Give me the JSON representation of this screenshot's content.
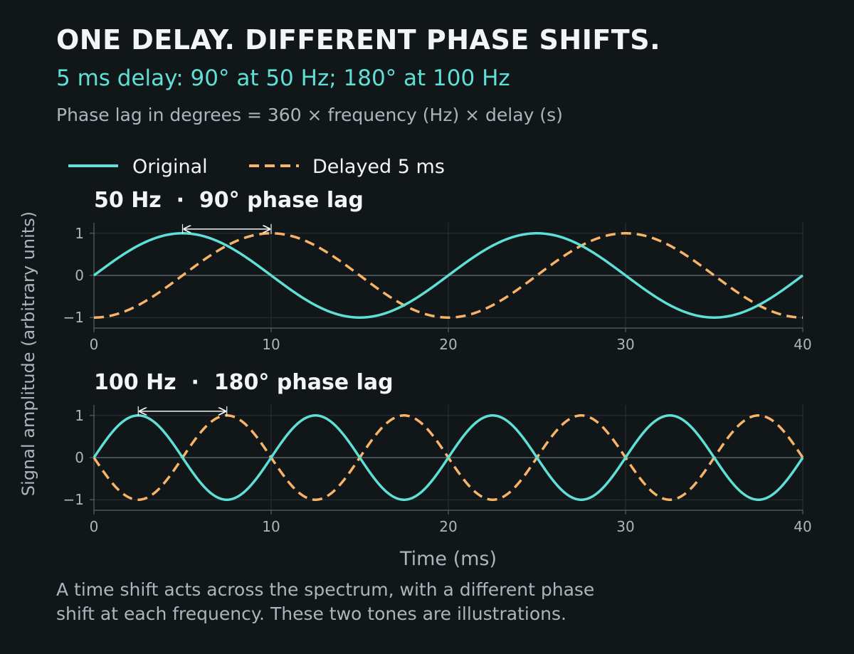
{
  "header": {
    "title": "ONE DELAY. DIFFERENT PHASE SHIFTS.",
    "subtitle": "5 ms delay: 90° at 50 Hz; 180° at 100 Hz",
    "formula": "Phase lag in degrees = 360 × frequency (Hz) × delay (s)"
  },
  "footnote": {
    "line1": "A time shift acts across the spectrum, with a different phase",
    "line2": "shift at each frequency. These two tones are illustrations."
  },
  "colors": {
    "background": "#111619",
    "original": "#5fe0d6",
    "delayed": "#f7b368",
    "text": "#f2f4f5",
    "muted": "#a9b7bd",
    "grid": "#2a3237",
    "zero_line": "#56646b",
    "axis": "#56646b"
  },
  "legend": {
    "original": "Original",
    "delayed": "Delayed 5 ms"
  },
  "chart_data": [
    {
      "type": "line",
      "title": "50 Hz  ·  90° phase lag",
      "frequency_hz": 50,
      "delay_ms": 5,
      "xlabel": "Time (ms)",
      "ylabel": "Signal amplitude (arbitrary units)",
      "xlim": [
        0,
        40
      ],
      "ylim": [
        -1.25,
        1.25
      ],
      "xticks": [
        0,
        10,
        20,
        30,
        40
      ],
      "xtick_labels": [
        "0",
        "10",
        "20",
        "30",
        "40"
      ],
      "yticks": [
        1,
        0,
        -1
      ],
      "ytick_labels": [
        "1",
        "0",
        "−1"
      ],
      "grid": true,
      "series": [
        {
          "name": "Original",
          "function": "sin(2π·50·t)",
          "style": "solid"
        },
        {
          "name": "Delayed 5 ms",
          "function": "sin(2π·50·(t − 5 ms))",
          "style": "dashed"
        }
      ],
      "annotation": {
        "type": "double-arrow",
        "x_start": 5,
        "x_end": 10,
        "y": 1.1
      }
    },
    {
      "type": "line",
      "title": "100 Hz  ·  180° phase lag",
      "frequency_hz": 100,
      "delay_ms": 5,
      "xlabel": "Time (ms)",
      "ylabel": "Signal amplitude (arbitrary units)",
      "xlim": [
        0,
        40
      ],
      "ylim": [
        -1.25,
        1.25
      ],
      "xticks": [
        0,
        10,
        20,
        30,
        40
      ],
      "xtick_labels": [
        "0",
        "10",
        "20",
        "30",
        "40"
      ],
      "yticks": [
        1,
        0,
        -1
      ],
      "ytick_labels": [
        "1",
        "0",
        "−1"
      ],
      "grid": true,
      "series": [
        {
          "name": "Original",
          "function": "sin(2π·100·t)",
          "style": "solid"
        },
        {
          "name": "Delayed 5 ms",
          "function": "sin(2π·100·(t − 5 ms))",
          "style": "dashed"
        }
      ],
      "annotation": {
        "type": "double-arrow",
        "x_start": 2.5,
        "x_end": 7.5,
        "y": 1.1
      }
    }
  ],
  "axes": {
    "shared_xlabel": "Time (ms)",
    "shared_ylabel": "Signal amplitude (arbitrary units)"
  }
}
